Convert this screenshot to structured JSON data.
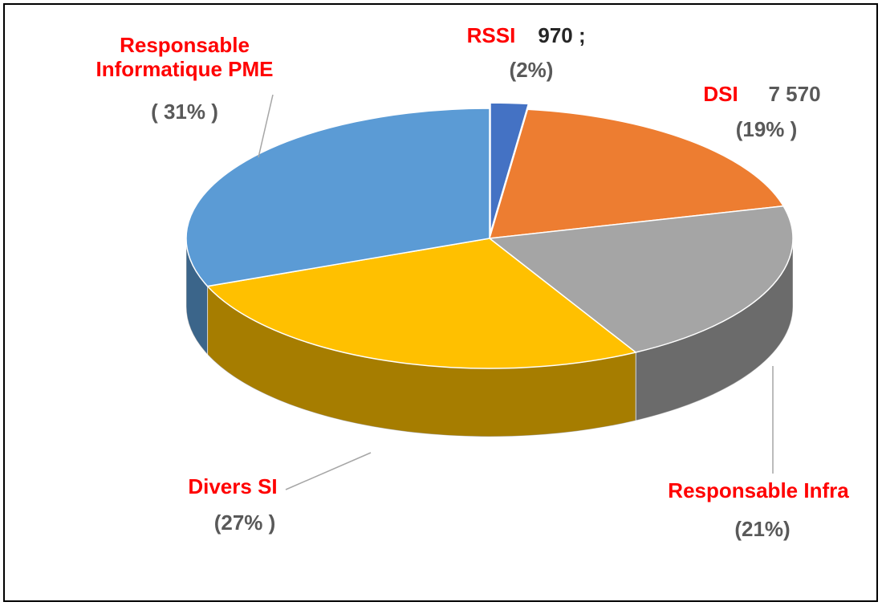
{
  "chart_data": {
    "type": "pie3d",
    "categories": [
      "RSSI",
      "DSI",
      "Responsable Infra",
      "Divers SI",
      "Responsable Informatique PME"
    ],
    "values": [
      2,
      19,
      21,
      27,
      31
    ],
    "value_labels": [
      "(2%)",
      "(19% )",
      "(21%)",
      "(27% )",
      "( 31% )"
    ],
    "counts": [
      970,
      7570,
      null,
      null,
      null
    ],
    "count_labels": [
      "970 ;",
      "7 570",
      null,
      null,
      null
    ],
    "colors": [
      "#4472c4",
      "#ed7d31",
      "#a5a5a5",
      "#ffc000",
      "#5b9bd5"
    ],
    "exploded": [
      true,
      false,
      false,
      false,
      false
    ]
  }
}
